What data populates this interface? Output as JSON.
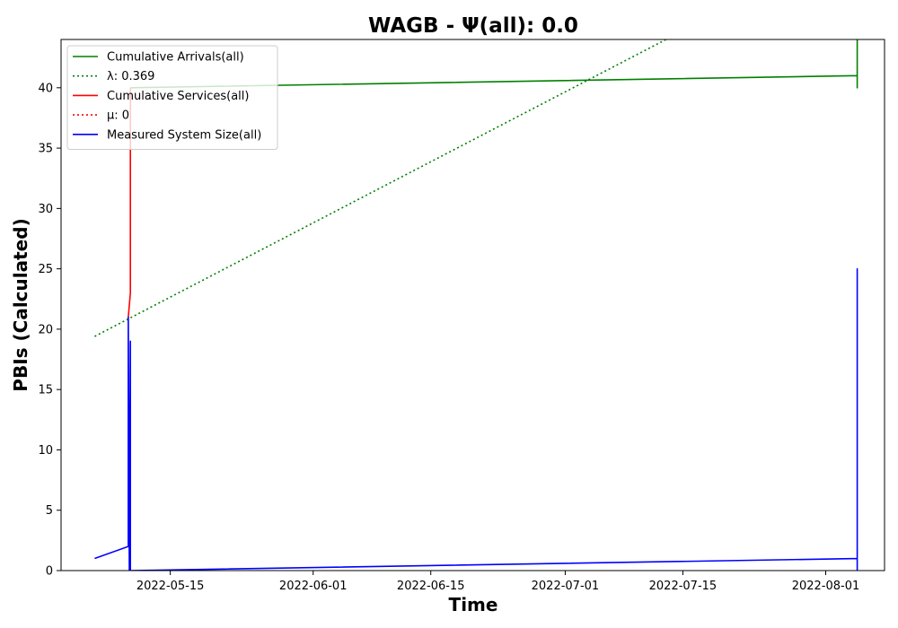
{
  "chart_data": {
    "type": "line",
    "title": "WAGB -  Ψ(all): 0.0",
    "xlabel": "Time",
    "ylabel": "PBIs (Calculated)",
    "xlim": [
      "2022-05-02",
      "2022-08-08"
    ],
    "ylim": [
      0,
      44
    ],
    "x_ticks": [
      "2022-05-15",
      "2022-06-01",
      "2022-06-15",
      "2022-07-01",
      "2022-07-15",
      "2022-08-01"
    ],
    "y_ticks": [
      0,
      5,
      10,
      15,
      20,
      25,
      30,
      35,
      40
    ],
    "grid": false,
    "legend_position": "upper-left",
    "series": [
      {
        "name": "Cumulative Arrivals(all)",
        "color": "#008000",
        "style": "solid",
        "points": [
          {
            "x": "2022-05-10T06:00",
            "y": 40
          },
          {
            "x": "2022-08-04T18:00",
            "y": 41
          },
          {
            "x": "2022-08-04T18:00",
            "y": 40
          },
          {
            "x": "2022-08-04T18:00",
            "y": 44
          }
        ]
      },
      {
        "name": "λ: 0.369",
        "color": "#008000",
        "style": "dotted",
        "points": [
          {
            "x": "2022-05-06T00:00",
            "y": 19.4
          },
          {
            "x": "2022-07-13T00:00",
            "y": 44
          }
        ]
      },
      {
        "name": "Cumulative Services(all)",
        "color": "#ff0000",
        "style": "solid",
        "points": [
          {
            "x": "2022-05-10T00:00",
            "y": 21
          },
          {
            "x": "2022-05-10T06:00",
            "y": 23
          },
          {
            "x": "2022-05-10T06:00",
            "y": 29
          },
          {
            "x": "2022-05-10T06:00",
            "y": 40
          }
        ]
      },
      {
        "name": "μ: 0",
        "color": "#ff0000",
        "style": "dotted",
        "points": []
      },
      {
        "name": "Measured System Size(all)",
        "color": "#0000ff",
        "style": "solid",
        "points": [
          {
            "x": "2022-05-06T00:00",
            "y": 1
          },
          {
            "x": "2022-05-10T00:00",
            "y": 2
          },
          {
            "x": "2022-05-10T00:00",
            "y": 21
          },
          {
            "x": "2022-05-10T03:00",
            "y": 0
          },
          {
            "x": "2022-05-10T06:00",
            "y": 19
          },
          {
            "x": "2022-05-10T06:00",
            "y": 0
          },
          {
            "x": "2022-08-04T18:00",
            "y": 1
          },
          {
            "x": "2022-08-04T18:00",
            "y": 25
          },
          {
            "x": "2022-08-04T18:00",
            "y": 0
          }
        ]
      }
    ]
  }
}
